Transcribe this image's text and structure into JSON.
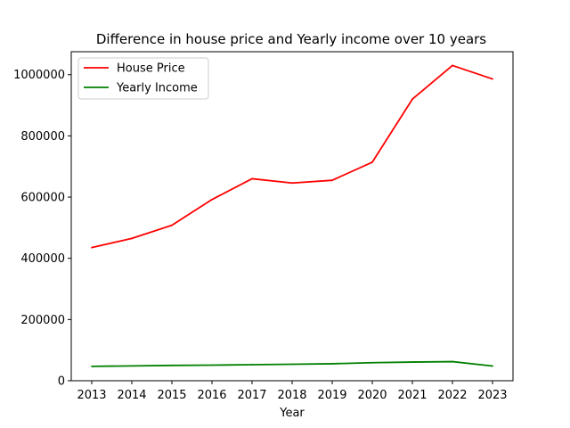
{
  "chart_data": {
    "type": "line",
    "title": "Difference in house price and Yearly income over 10 years",
    "xlabel": "Year",
    "ylabel": "",
    "categories": [
      "2013",
      "2014",
      "2015",
      "2016",
      "2017",
      "2018",
      "2019",
      "2020",
      "2021",
      "2022",
      "2023"
    ],
    "ylim": [
      0,
      1075000
    ],
    "yticks": [
      0,
      200000,
      400000,
      600000,
      800000,
      1000000
    ],
    "legend_position": "upper-left",
    "series": [
      {
        "name": "House Price",
        "color": "#ff0000",
        "values": [
          435000,
          465000,
          508000,
          592000,
          660000,
          646000,
          655000,
          714000,
          920000,
          1030000,
          986000
        ]
      },
      {
        "name": "Yearly Income",
        "color": "#008000",
        "values": [
          47000,
          48500,
          50000,
          51000,
          52500,
          54000,
          55500,
          59000,
          61000,
          62500,
          48000
        ]
      }
    ]
  }
}
